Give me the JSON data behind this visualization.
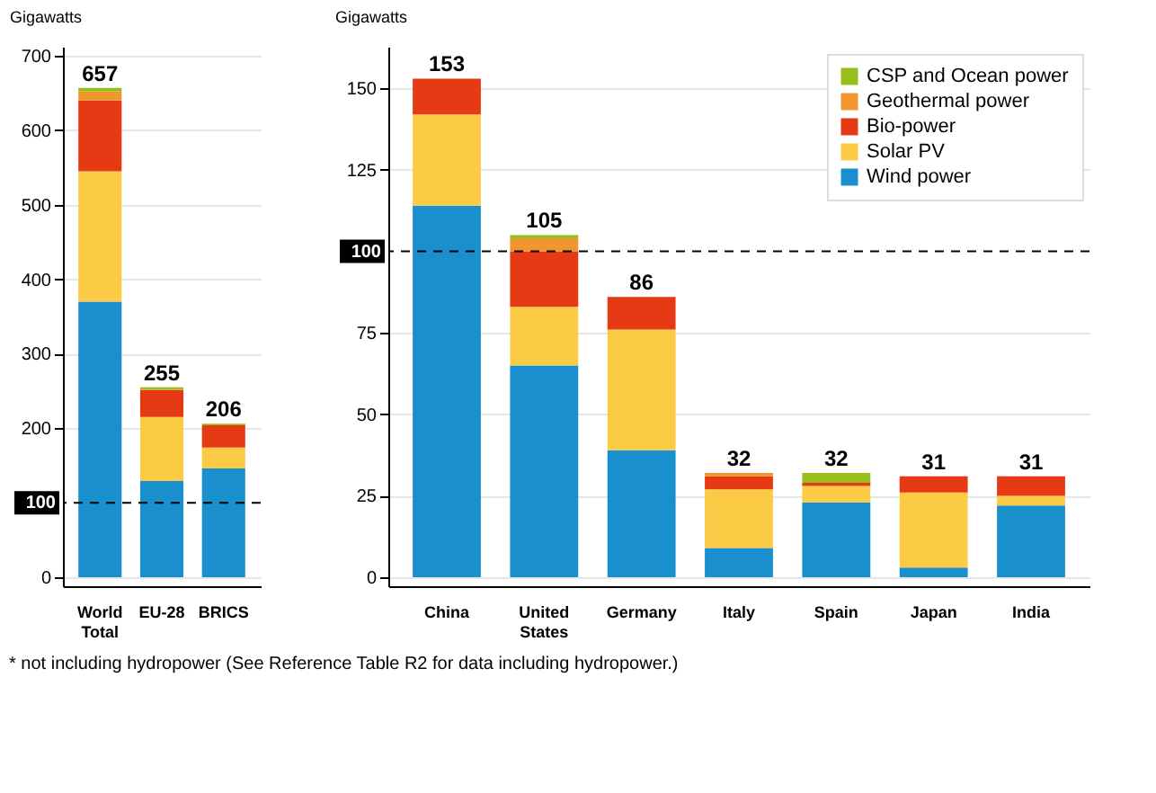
{
  "chart_data": [
    {
      "type": "bar",
      "stacked": true,
      "ylabel": "Gigawatts",
      "categories": [
        "World Total",
        "EU-28",
        "BRICS"
      ],
      "series": [
        {
          "color": "#1a8fce",
          "values": [
            370,
            129,
            146
          ]
        },
        {
          "color": "#fccb45",
          "values": [
            175,
            86,
            28
          ]
        },
        {
          "color": "#e53a14",
          "values": [
            95,
            36,
            30
          ]
        },
        {
          "color": "#f0962f",
          "values": [
            12,
            1,
            0
          ]
        },
        {
          "color": "#96bf1e",
          "values": [
            5,
            3,
            2
          ]
        }
      ],
      "totals": [
        "657",
        "255",
        "206"
      ],
      "ylim": [
        0,
        700
      ],
      "yticks": [
        0,
        200,
        300,
        400,
        500,
        600,
        700
      ],
      "grid": "y",
      "legend": false,
      "ref_lines": [
        {
          "axis": "y",
          "value": 100,
          "label": "100",
          "line_style": "dashed"
        }
      ],
      "annotations": [
        "* not including hydropower (See Reference Table R2 for data including hydropower.)"
      ]
    },
    {
      "type": "bar",
      "stacked": true,
      "ylabel": "Gigawatts",
      "categories": [
        "China",
        "United States",
        "Germany",
        "Italy",
        "Spain",
        "Japan",
        "India"
      ],
      "series": [
        {
          "name": "Wind power",
          "color": "#1a8fce",
          "values": [
            114,
            65,
            39,
            9,
            23,
            3,
            22
          ]
        },
        {
          "name": "Solar PV",
          "color": "#fccb45",
          "values": [
            28,
            18,
            37,
            18,
            5,
            23,
            3
          ]
        },
        {
          "name": "Bio-power",
          "color": "#e53a14",
          "values": [
            11,
            17,
            10,
            4,
            1,
            5,
            6
          ]
        },
        {
          "name": "Geothermal power",
          "color": "#f0962f",
          "values": [
            0,
            4,
            0,
            1,
            0,
            0,
            0
          ]
        },
        {
          "name": "CSP and Ocean power",
          "color": "#96bf1e",
          "values": [
            0,
            1,
            0,
            0,
            3,
            0,
            0
          ]
        }
      ],
      "totals": [
        "153",
        "105",
        "86",
        "32",
        "32",
        "31",
        "31"
      ],
      "ylim": [
        0,
        160
      ],
      "yticks": [
        0,
        25,
        50,
        75,
        125,
        150
      ],
      "grid": "y",
      "legend": "top right",
      "ref_lines": [
        {
          "axis": "y",
          "value": 100,
          "label": "100",
          "line_style": "dashed"
        }
      ]
    }
  ]
}
